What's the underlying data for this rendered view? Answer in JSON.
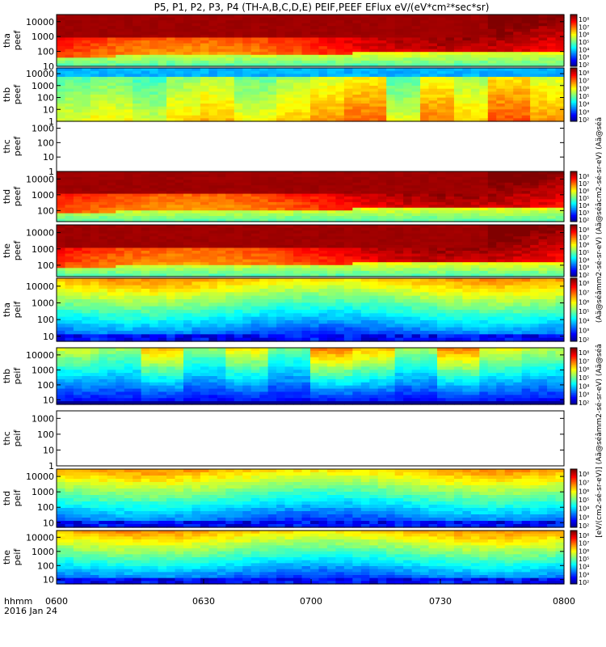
{
  "title": "P5, P1, P2, P3, P4 (TH-A,B,C,D,E) PEIF,PEEF EFlux eV/(eV*cm²*sec*sr)",
  "time_axis": {
    "ticks": [
      "0600",
      "0630",
      "0700",
      "0730",
      "0800"
    ],
    "label": "hhmm",
    "date": "2016 Jan 24"
  },
  "colorbar_labels": {
    "electron": "(Aä@séâmm2-sé-sr-eV) (Aä@séâcm2-sé-sr-eV) (Aä@séâ",
    "ion": "[eV/(cm2-sé-sr-eV)] (Aä@séâmm2-sé-sr-eV) (Aä@séâ"
  },
  "colorbar_ticks": [
    "10⁸",
    "10⁷",
    "10⁶",
    "10⁵",
    "10⁴",
    "10³",
    "10²"
  ],
  "chart_data": [
    {
      "type": "heatmap",
      "probe": "tha",
      "species": "peef",
      "ylabel": "tha\npeef",
      "yticks": [
        "10000",
        "1000",
        "100",
        "10"
      ],
      "ylim": [
        10,
        30000
      ],
      "scale": "log",
      "has_data": true,
      "colorbar": true,
      "profile": "electron-high",
      "xlim": [
        "0600",
        "0800"
      ]
    },
    {
      "type": "heatmap",
      "probe": "thb",
      "species": "peef",
      "ylabel": "thb\npeef",
      "yticks": [
        "10000",
        "1000",
        "100",
        "10",
        "1"
      ],
      "ylim": [
        1,
        30000
      ],
      "scale": "log",
      "has_data": true,
      "colorbar": true,
      "profile": "electron-thb",
      "xlim": [
        "0600",
        "0800"
      ]
    },
    {
      "type": "heatmap",
      "probe": "thc",
      "species": "peef",
      "ylabel": "thc\npeef",
      "yticks": [
        "1000",
        "100",
        "10",
        "1"
      ],
      "ylim": [
        1,
        3000
      ],
      "scale": "log",
      "has_data": false,
      "colorbar": false,
      "profile": "empty",
      "xlim": [
        "0600",
        "0800"
      ]
    },
    {
      "type": "heatmap",
      "probe": "thd",
      "species": "peef",
      "ylabel": "thd\npeef",
      "yticks": [
        "10000",
        "1000",
        "100"
      ],
      "ylim": [
        20,
        30000
      ],
      "scale": "log",
      "has_data": true,
      "colorbar": true,
      "profile": "electron-high",
      "xlim": [
        "0600",
        "0800"
      ]
    },
    {
      "type": "heatmap",
      "probe": "the",
      "species": "peef",
      "ylabel": "the\npeef",
      "yticks": [
        "10000",
        "1000",
        "100"
      ],
      "ylim": [
        20,
        30000
      ],
      "scale": "log",
      "has_data": true,
      "colorbar": true,
      "profile": "electron-high",
      "xlim": [
        "0600",
        "0800"
      ]
    },
    {
      "type": "heatmap",
      "probe": "tha",
      "species": "peif",
      "ylabel": "tha\npeif",
      "yticks": [
        "10000",
        "1000",
        "100",
        "10"
      ],
      "ylim": [
        5,
        30000
      ],
      "scale": "log",
      "has_data": true,
      "colorbar": true,
      "profile": "ion",
      "xlim": [
        "0600",
        "0800"
      ]
    },
    {
      "type": "heatmap",
      "probe": "thb",
      "species": "peif",
      "ylabel": "thb\npeif",
      "yticks": [
        "10000",
        "1000",
        "100",
        "10"
      ],
      "ylim": [
        5,
        30000
      ],
      "scale": "log",
      "has_data": true,
      "colorbar": true,
      "profile": "ion-thb",
      "xlim": [
        "0600",
        "0800"
      ]
    },
    {
      "type": "heatmap",
      "probe": "thc",
      "species": "peif",
      "ylabel": "thc\npeif",
      "yticks": [
        "1000",
        "100",
        "10",
        "1"
      ],
      "ylim": [
        1,
        3000
      ],
      "scale": "log",
      "has_data": false,
      "colorbar": false,
      "profile": "empty",
      "xlim": [
        "0600",
        "0800"
      ]
    },
    {
      "type": "heatmap",
      "probe": "thd",
      "species": "peif",
      "ylabel": "thd\npeif",
      "yticks": [
        "10000",
        "1000",
        "100",
        "10"
      ],
      "ylim": [
        5,
        30000
      ],
      "scale": "log",
      "has_data": true,
      "colorbar": true,
      "profile": "ion",
      "xlim": [
        "0600",
        "0800"
      ]
    },
    {
      "type": "heatmap",
      "probe": "the",
      "species": "peif",
      "ylabel": "the\npeif",
      "yticks": [
        "10000",
        "1000",
        "100",
        "10"
      ],
      "ylim": [
        5,
        30000
      ],
      "scale": "log",
      "has_data": true,
      "colorbar": true,
      "profile": "ion",
      "xlim": [
        "0600",
        "0800"
      ]
    }
  ]
}
